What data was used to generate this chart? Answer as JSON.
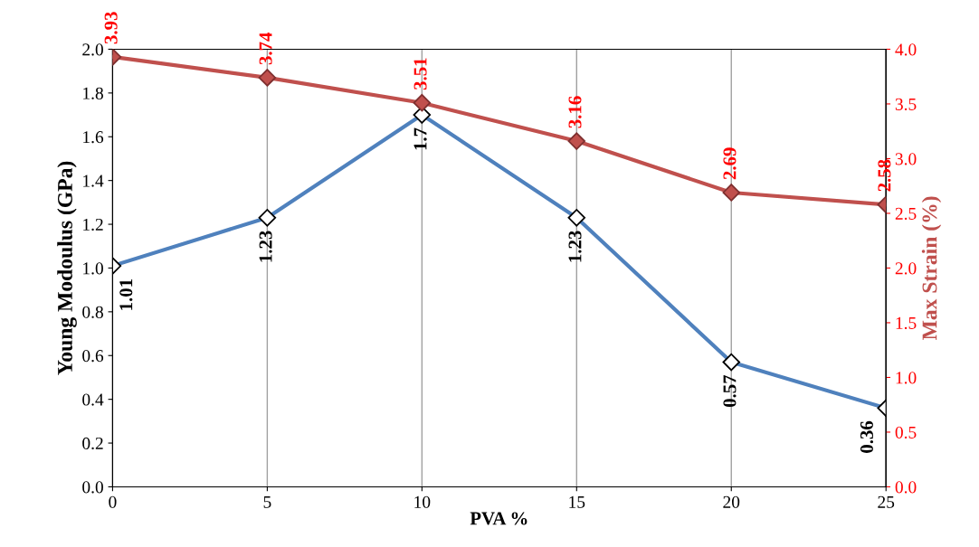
{
  "chart_data": {
    "type": "line",
    "xlabel": "PVA %",
    "ylabel": "Young Modoulus (GPa)",
    "y2label": "Max Strain (%)",
    "x": [
      0,
      5,
      10,
      15,
      20,
      25
    ],
    "series": [
      {
        "color": "#4f81bd",
        "marker": "diamond",
        "values": [
          1.01,
          1.23,
          1.7,
          1.23,
          0.57,
          0.36
        ]
      },
      {
        "color": "#c0504d",
        "marker": "diamond",
        "axis": "y2",
        "values": [
          3.93,
          3.74,
          3.51,
          3.16,
          2.69,
          2.58
        ]
      }
    ],
    "data_labels": true,
    "grid": "x",
    "xlim": [
      0,
      25
    ],
    "xticks": [
      0,
      5,
      10,
      15,
      20,
      25
    ],
    "ylim": [
      0,
      2.0
    ],
    "yticks": [
      {
        "value": 0,
        "label": "0.0"
      },
      0.2,
      0.4,
      0.6,
      0.8,
      {
        "value": 1.0,
        "label": "1.0"
      },
      1.2,
      1.4,
      1.6,
      1.8,
      {
        "value": 2.0,
        "label": "2.0"
      }
    ],
    "y2lim": [
      0,
      4.0
    ],
    "y2ticks": [
      {
        "value": 0,
        "label": "0.0"
      },
      0.5,
      {
        "value": 1.0,
        "label": "1.0"
      },
      1.5,
      {
        "value": 2.0,
        "label": "2.0"
      },
      2.5,
      {
        "value": 3.0,
        "label": "3.0"
      },
      3.5,
      {
        "value": 4.0,
        "label": "4.0"
      }
    ]
  }
}
